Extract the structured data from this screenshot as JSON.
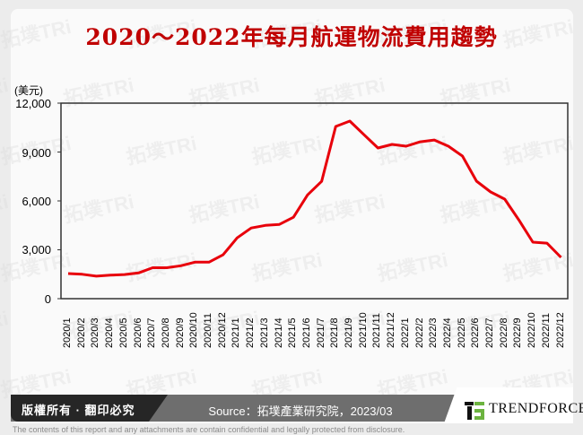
{
  "title": "2020～2022年每月航運物流費用趨勢",
  "unit_label": "(美元)",
  "colors": {
    "line": "#e8000b",
    "title": "#c00000",
    "axis": "#333333"
  },
  "watermark": "拓墣 TRi TOPOLOGY RESEARCH INSTITUTE",
  "footer": {
    "copyright": "版權所有 · 翻印必究",
    "source": "Source：拓墣產業研究院，2023/03",
    "logo_text": "TRENDFORCE",
    "disclaimer": "The contents of this report and any attachments are contain confidential and legally protected from disclosure."
  },
  "y_ticks": [
    "12,000",
    "9,000",
    "6,000",
    "3,000",
    "0"
  ],
  "chart_data": {
    "type": "line",
    "title": "2020～2022年每月航運物流費用趨勢",
    "xlabel": "",
    "ylabel": "(美元)",
    "ylim": [
      0,
      12000
    ],
    "yticks": [
      0,
      3000,
      6000,
      9000,
      12000
    ],
    "grid": false,
    "legend": null,
    "categories": [
      "2020/1",
      "2020/2",
      "2020/3",
      "2020/4",
      "2020/5",
      "2020/6",
      "2020/7",
      "2020/8",
      "2020/9",
      "2020/10",
      "2020/11",
      "2020/12",
      "2021/1",
      "2021/2",
      "2021/3",
      "2021/4",
      "2021/5",
      "2021/6",
      "2021/7",
      "2021/8",
      "2021/9",
      "2021/10",
      "2021/11",
      "2021/12",
      "2022/1",
      "2022/2",
      "2022/3",
      "2022/4",
      "2022/5",
      "2022/6",
      "2022/7",
      "2022/8",
      "2022/9",
      "2022/10",
      "2022/11",
      "2022/12"
    ],
    "series": [
      {
        "name": "航運物流費用",
        "values": [
          1540,
          1500,
          1380,
          1440,
          1480,
          1580,
          1900,
          1900,
          2020,
          2240,
          2240,
          2690,
          3730,
          4340,
          4500,
          4560,
          5000,
          6370,
          7200,
          10570,
          10900,
          10070,
          9250,
          9470,
          9360,
          9630,
          9740,
          9360,
          8750,
          7210,
          6550,
          6110,
          4840,
          3470,
          3410,
          2530
        ]
      }
    ]
  }
}
